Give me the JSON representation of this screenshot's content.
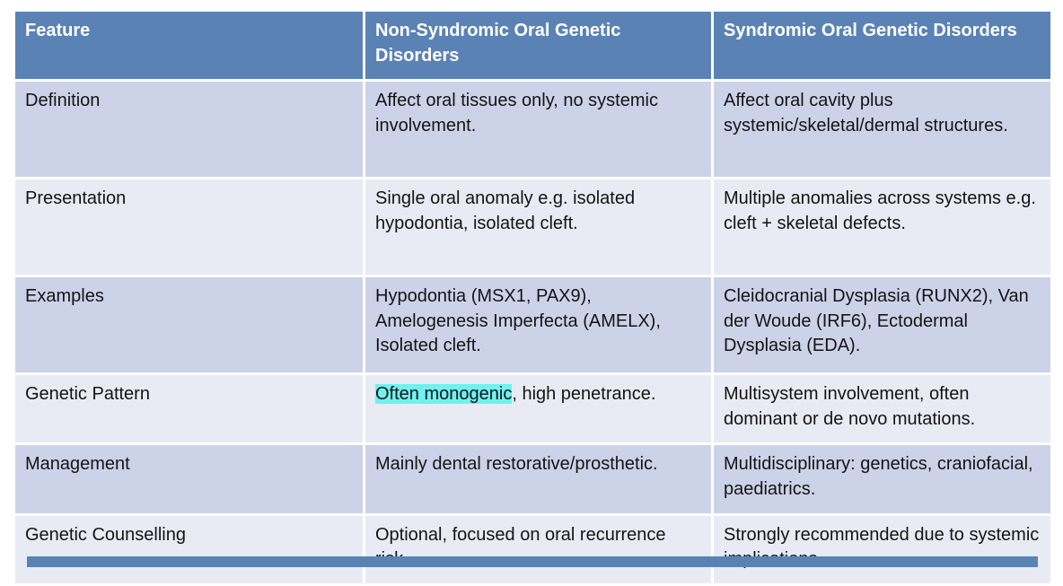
{
  "colors": {
    "header_bg": "#5b82b5",
    "band_dark": "#ccd3e8",
    "band_light": "#e9ebf4",
    "highlight": "#6ff1ef"
  },
  "table": {
    "columns": [
      {
        "label": "Feature"
      },
      {
        "label": "Non-Syndromic Oral Genetic Disorders"
      },
      {
        "label": "Syndromic Oral Genetic Disorders"
      }
    ],
    "rows": [
      {
        "feature": "Definition",
        "non_syndromic": [
          {
            "text": "Affect oral tissues only, no systemic involvement."
          }
        ],
        "syndromic": [
          {
            "text": "Affect oral cavity plus systemic/skeletal/dermal structures."
          }
        ]
      },
      {
        "feature": "Presentation",
        "non_syndromic": [
          {
            "text": "Single oral anomaly e.g. isolated hypodontia, isolated cleft."
          }
        ],
        "syndromic": [
          {
            "text": "Multiple anomalies across systems e.g. cleft + skeletal defects."
          }
        ]
      },
      {
        "feature": "Examples",
        "non_syndromic": [
          {
            "text": "Hypodontia (MSX1, PAX9), Amelogenesis Imperfecta (AMELX), Isolated cleft."
          }
        ],
        "syndromic": [
          {
            "text": "Cleidocranial Dysplasia (RUNX2), Van der Woude (IRF6), Ectodermal Dysplasia (EDA)."
          }
        ]
      },
      {
        "feature": "Genetic Pattern",
        "non_syndromic": [
          {
            "text": "Often monogenic",
            "highlight": true
          },
          {
            "text": ", high penetrance."
          }
        ],
        "syndromic": [
          {
            "text": "Multisystem involvement, often dominant or de novo mutations."
          }
        ]
      },
      {
        "feature": "Management",
        "non_syndromic": [
          {
            "text": "Mainly dental restorative/prosthetic."
          }
        ],
        "syndromic": [
          {
            "text": "Multidisciplinary: genetics, craniofacial, paediatrics."
          }
        ]
      },
      {
        "feature": "Genetic Counselling",
        "non_syndromic": [
          {
            "text": "Optional, focused on oral recurrence risk."
          }
        ],
        "syndromic": [
          {
            "text": "Strongly recommended due to systemic implications."
          }
        ]
      }
    ]
  }
}
